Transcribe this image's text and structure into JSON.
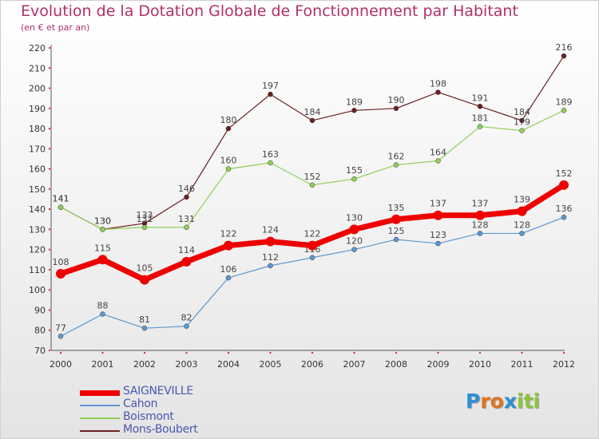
{
  "chart_data": {
    "type": "line",
    "title": "Evolution de la Dotation Globale de Fonctionnement par Habitant",
    "subtitle": "(en € et par an)",
    "x": [
      "2000",
      "2001",
      "2002",
      "2003",
      "2004",
      "2005",
      "2006",
      "2007",
      "2008",
      "2009",
      "2010",
      "2011",
      "2012"
    ],
    "ylim": [
      70,
      220
    ],
    "yticks": [
      70,
      80,
      90,
      100,
      110,
      120,
      130,
      140,
      150,
      160,
      170,
      180,
      190,
      200,
      210,
      220
    ],
    "grid": false,
    "legend_position": "bottom-left",
    "series": [
      {
        "name": "Mons-Boubert",
        "color": "#6b1f1f",
        "values": [
          141,
          130,
          133,
          146,
          180,
          197,
          184,
          189,
          190,
          198,
          191,
          184,
          216
        ]
      },
      {
        "name": "Boismont",
        "color": "#8ed05a",
        "values": [
          141,
          130,
          131,
          131,
          160,
          163,
          152,
          155,
          162,
          164,
          181,
          179,
          189
        ]
      },
      {
        "name": "Cahon",
        "color": "#5a98d0",
        "values": [
          77,
          88,
          81,
          82,
          106,
          112,
          116,
          120,
          125,
          123,
          128,
          128,
          136
        ]
      },
      {
        "name": "SAIGNEVILLE",
        "color": "#ee0000",
        "values": [
          108,
          115,
          105,
          114,
          122,
          124,
          122,
          130,
          135,
          137,
          137,
          139,
          152
        ]
      }
    ]
  },
  "legend": {
    "items": [
      {
        "label": "SAIGNEVILLE",
        "color": "#ee0000"
      },
      {
        "label": "Cahon",
        "color": "#5a98d0"
      },
      {
        "label": "Boismont",
        "color": "#8ed05a"
      },
      {
        "label": "Mons-Boubert",
        "color": "#6b1f1f"
      }
    ]
  },
  "logo": {
    "letters": [
      {
        "ch": "P",
        "color": "#2e8fd6"
      },
      {
        "ch": "r",
        "color": "#e0731f"
      },
      {
        "ch": "o",
        "color": "#e0731f"
      },
      {
        "ch": "x",
        "color": "#2e8fd6"
      },
      {
        "ch": "i",
        "color": "#8cc43c"
      },
      {
        "ch": "t",
        "color": "#8cc43c"
      },
      {
        "ch": "i",
        "color": "#8cc43c"
      }
    ]
  }
}
